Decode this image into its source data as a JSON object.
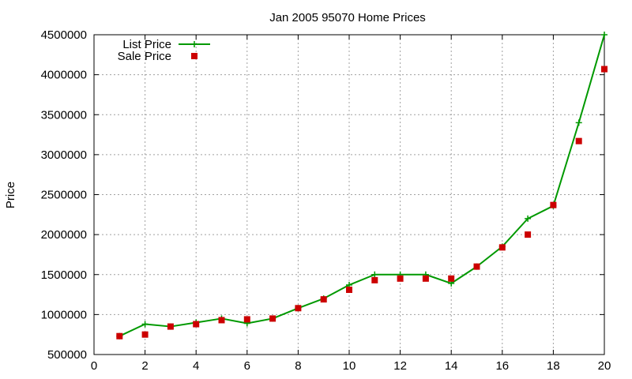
{
  "chart_data": {
    "type": "line",
    "title": "Jan 2005 95070 Home Prices",
    "xlabel": "",
    "ylabel": "Price",
    "xlim": [
      0,
      20
    ],
    "ylim": [
      500000,
      4500000
    ],
    "x_ticks": [
      "0",
      "2",
      "4",
      "6",
      "8",
      "10",
      "12",
      "14",
      "16",
      "18",
      "20"
    ],
    "y_ticks": [
      "500000",
      "1000000",
      "1500000",
      "2000000",
      "2500000",
      "3000000",
      "3500000",
      "4000000",
      "4500000"
    ],
    "grid": true,
    "legend_position": "top-left",
    "series": [
      {
        "name": "List Price",
        "style": "lines+crosses",
        "color": "#009900",
        "x": [
          1,
          2,
          3,
          4,
          5,
          6,
          7,
          8,
          9,
          10,
          11,
          12,
          13,
          14,
          15,
          16,
          17,
          18,
          19,
          20
        ],
        "values": [
          730000,
          880000,
          850000,
          900000,
          950000,
          890000,
          950000,
          1080000,
          1200000,
          1370000,
          1500000,
          1500000,
          1500000,
          1390000,
          1600000,
          1850000,
          2200000,
          2360000,
          3400000,
          4500000
        ]
      },
      {
        "name": "Sale Price",
        "style": "squares",
        "color": "#cc0000",
        "x": [
          1,
          2,
          3,
          4,
          5,
          6,
          7,
          8,
          9,
          10,
          11,
          12,
          13,
          14,
          15,
          16,
          17,
          18,
          19,
          20
        ],
        "values": [
          730000,
          750000,
          850000,
          880000,
          930000,
          940000,
          950000,
          1080000,
          1190000,
          1310000,
          1430000,
          1450000,
          1450000,
          1450000,
          1600000,
          1840000,
          2000000,
          2370000,
          3170000,
          4070000
        ]
      }
    ]
  }
}
